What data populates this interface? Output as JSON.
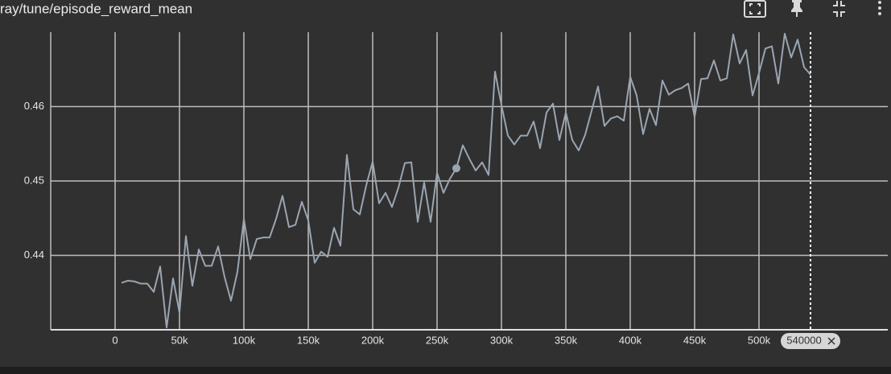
{
  "chart_data": {
    "type": "line",
    "title": "ray/tune/episode_reward_mean",
    "color": "#9aa5b1",
    "x": [
      5000,
      10000,
      15000,
      20000,
      25000,
      30000,
      35000,
      40000,
      45000,
      50000,
      55000,
      60000,
      65000,
      70000,
      75000,
      80000,
      85000,
      90000,
      95000,
      100000,
      105000,
      110000,
      115000,
      120000,
      125000,
      130000,
      135000,
      140000,
      145000,
      150000,
      155000,
      160000,
      165000,
      170000,
      175000,
      180000,
      185000,
      190000,
      195000,
      200000,
      205000,
      210000,
      215000,
      220000,
      225000,
      230000,
      235000,
      240000,
      245000,
      250000,
      255000,
      260000,
      265000,
      270000,
      275000,
      280000,
      285000,
      290000,
      295000,
      300000,
      305000,
      310000,
      315000,
      320000,
      325000,
      330000,
      335000,
      340000,
      345000,
      350000,
      355000,
      360000,
      365000,
      370000,
      375000,
      380000,
      385000,
      390000,
      395000,
      400000,
      405000,
      410000,
      415000,
      420000,
      425000,
      430000,
      435000,
      440000,
      445000,
      450000,
      455000,
      460000,
      465000,
      470000,
      475000,
      480000,
      485000,
      490000,
      495000,
      500000,
      505000,
      510000,
      515000,
      520000,
      525000,
      530000,
      535000,
      540000
    ],
    "values": [
      0.4363,
      0.4366,
      0.4365,
      0.4362,
      0.4362,
      0.4351,
      0.4385,
      0.4303,
      0.4369,
      0.4323,
      0.4426,
      0.4359,
      0.4408,
      0.4386,
      0.4386,
      0.4412,
      0.4371,
      0.4339,
      0.4378,
      0.4449,
      0.4395,
      0.4422,
      0.4424,
      0.4424,
      0.4449,
      0.448,
      0.4438,
      0.4441,
      0.4472,
      0.4447,
      0.439,
      0.4405,
      0.4398,
      0.4437,
      0.4413,
      0.4535,
      0.4462,
      0.4455,
      0.4494,
      0.4526,
      0.447,
      0.4484,
      0.4465,
      0.4491,
      0.4524,
      0.4525,
      0.4445,
      0.4498,
      0.4445,
      0.4511,
      0.4484,
      0.4503,
      0.4517,
      0.4548,
      0.453,
      0.4514,
      0.4525,
      0.4508,
      0.4647,
      0.4602,
      0.4561,
      0.4549,
      0.4561,
      0.4561,
      0.458,
      0.4544,
      0.4592,
      0.4604,
      0.4555,
      0.4592,
      0.4555,
      0.4541,
      0.4562,
      0.4594,
      0.4627,
      0.4574,
      0.4584,
      0.4587,
      0.4581,
      0.464,
      0.4615,
      0.4563,
      0.4597,
      0.4575,
      0.4635,
      0.4616,
      0.4622,
      0.4625,
      0.4631,
      0.4586,
      0.4637,
      0.4638,
      0.4662,
      0.4635,
      0.4638,
      0.4697,
      0.4658,
      0.4676,
      0.4615,
      0.4645,
      0.4678,
      0.4681,
      0.4631,
      0.4698,
      0.4666,
      0.469,
      0.4653,
      0.4643
    ],
    "xlim": [
      -50000,
      600000
    ],
    "xticks": [
      0,
      {
        "value": 50000,
        "label": "50k"
      },
      {
        "value": 100000,
        "label": "100k"
      },
      {
        "value": 150000,
        "label": "150k"
      },
      {
        "value": 200000,
        "label": "200k"
      },
      {
        "value": 250000,
        "label": "250k"
      },
      {
        "value": 300000,
        "label": "300k"
      },
      {
        "value": 350000,
        "label": "350k"
      },
      {
        "value": 400000,
        "label": "400k"
      },
      {
        "value": 450000,
        "label": "450k"
      },
      {
        "value": 500000,
        "label": "500k"
      }
    ],
    "ylim": [
      0.43,
      0.47
    ],
    "yticks": [
      0.44,
      0.45,
      0.46
    ],
    "grid": true,
    "highlight_index": 52,
    "cursor_x": 540000
  }
}
